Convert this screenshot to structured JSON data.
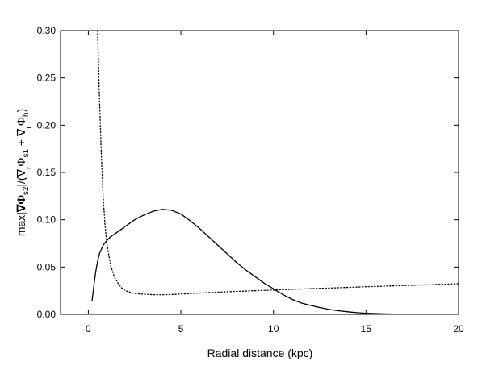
{
  "chart_data": {
    "type": "line",
    "title": "",
    "xlabel": "Radial distance (kpc)",
    "ylabel": "max|∇Φs2|/(∇r Φs1 + ∇r Φh)",
    "ylabel_parts": {
      "max": "max|",
      "nabla1": "∇",
      "phi1": "Φ",
      "sub_s2": "s2",
      "bar_over": "|/(",
      "nabla2": "∇",
      "sub_r1": "r",
      "phi2": "Φ",
      "sub_s1": "s1",
      "plus": " + ",
      "nabla3": "∇",
      "sub_r2": "r",
      "phi3": "Φ",
      "sub_h": "h",
      "close": ")"
    },
    "xlim": [
      -1.5,
      20
    ],
    "ylim": [
      0,
      0.3
    ],
    "x_ticks": [
      0,
      5,
      10,
      15,
      20
    ],
    "x_tick_labels": [
      "0",
      "5",
      "10",
      "15",
      "20"
    ],
    "y_ticks": [
      0,
      0.05,
      0.1,
      0.15,
      0.2,
      0.25,
      0.3
    ],
    "y_tick_labels": [
      "0.00",
      "0.05",
      "0.10",
      "0.15",
      "0.20",
      "0.25",
      "0.30"
    ],
    "grid": false,
    "series": [
      {
        "style": "solid",
        "color": "#000000",
        "x": [
          0.2,
          0.3,
          0.4,
          0.5,
          0.6,
          0.8,
          1.0,
          1.2,
          1.5,
          2.0,
          2.5,
          3.0,
          3.5,
          4.0,
          4.5,
          5.0,
          5.5,
          6.0,
          6.5,
          7.0,
          7.5,
          8.0,
          8.5,
          9.0,
          9.5,
          10.0,
          10.5,
          11.0,
          11.5,
          12.0,
          12.5,
          13.0,
          13.5,
          14.0,
          14.5,
          15.0,
          15.5,
          16.0,
          16.5,
          17.0,
          17.5,
          18.0,
          18.5,
          19.0,
          19.5,
          20.0
        ],
        "y": [
          0.014,
          0.03,
          0.045,
          0.056,
          0.064,
          0.073,
          0.078,
          0.082,
          0.086,
          0.093,
          0.1,
          0.105,
          0.109,
          0.111,
          0.11,
          0.106,
          0.099,
          0.091,
          0.082,
          0.073,
          0.064,
          0.055,
          0.047,
          0.04,
          0.033,
          0.027,
          0.021,
          0.016,
          0.012,
          0.0095,
          0.0072,
          0.0052,
          0.0038,
          0.0027,
          0.0018,
          0.0012,
          0.0008,
          0.0005,
          0.0003,
          0.0002,
          0.0001,
          5e-05,
          3e-05,
          2e-05,
          1e-05,
          0.0
        ]
      },
      {
        "style": "dotted",
        "color": "#000000",
        "x": [
          0.5,
          0.6,
          0.7,
          0.8,
          0.9,
          1.0,
          1.2,
          1.4,
          1.6,
          1.8,
          2.0,
          2.5,
          3.0,
          3.5,
          4.0,
          4.5,
          5.0,
          6.0,
          7.0,
          8.0,
          9.0,
          10.0,
          11.0,
          12.0,
          13.0,
          14.0,
          15.0,
          16.0,
          17.0,
          18.0,
          19.0,
          20.0
        ],
        "y": [
          0.3,
          0.23,
          0.17,
          0.125,
          0.095,
          0.075,
          0.052,
          0.04,
          0.033,
          0.028,
          0.025,
          0.022,
          0.0213,
          0.0208,
          0.0207,
          0.021,
          0.0215,
          0.0225,
          0.0235,
          0.0243,
          0.025,
          0.0257,
          0.0265,
          0.0272,
          0.0278,
          0.0285,
          0.0292,
          0.0298,
          0.0305,
          0.031,
          0.0317,
          0.0325
        ]
      }
    ]
  }
}
